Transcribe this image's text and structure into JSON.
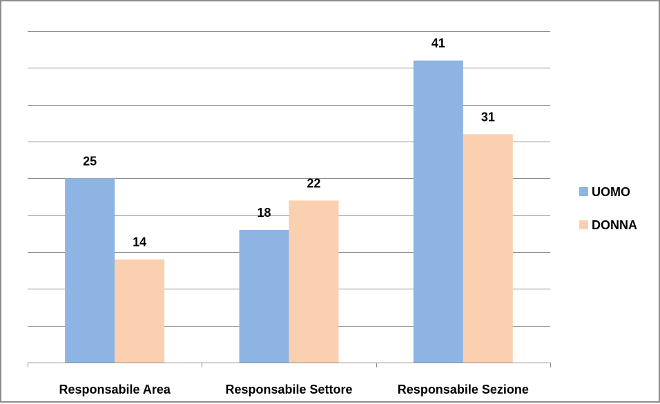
{
  "chart_data": {
    "type": "bar",
    "categories": [
      "Responsabile Area",
      "Responsabile Settore",
      "Responsabile Sezione"
    ],
    "series": [
      {
        "name": "UOMO",
        "values": [
          25,
          18,
          41
        ],
        "color": "#8EB4E3"
      },
      {
        "name": "DONNA",
        "values": [
          14,
          22,
          31
        ],
        "color": "#FAD0B0"
      }
    ],
    "ylim": [
      0,
      45
    ],
    "grid": true,
    "legend_position": "right",
    "data_labels": true
  }
}
